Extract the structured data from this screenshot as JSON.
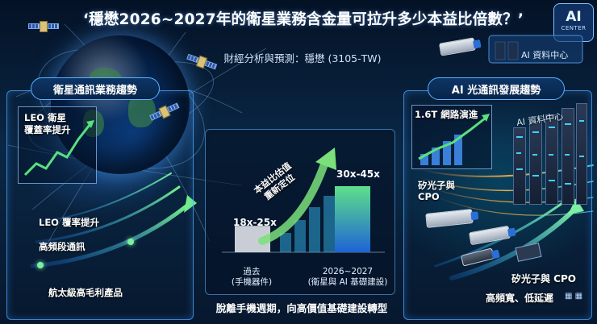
{
  "title": "‘穩懋2026~2027年的衛星業務含金量可拉升多少本益比倍數？’",
  "subtitle": "財經分析與預測：穩懋 (3105-TW)",
  "left_panel": {
    "heading": "衛星通訊業務趨勢",
    "mini_label": "LEO 衛星\n覆蓋率提升",
    "mini_label_1": "LEO 衛星",
    "mini_label_2": "覆蓋率提升",
    "points": [
      "LEO 覆率提升",
      "高頻段通訊",
      "航太級高毛利產品"
    ]
  },
  "right_panel": {
    "heading": "AI 光通訊發展趨勢",
    "ai_badge": "AI",
    "ai_badge_sub": "CENTER",
    "top_banner": "AI 資料中心",
    "server_banner": "AI 資料中心",
    "mini_label": "1.6T 網路演進",
    "photonics_label_1": "矽光子與",
    "photonics_label_2": "CPO",
    "bottom_label_1": "矽光子與 CPO",
    "bottom_label_2": "高頻寬、低延遲"
  },
  "chart_data": {
    "type": "bar",
    "categories": [
      "過去\n(手機器件)",
      "2026~2027\n(衛星與 AI 基礎建設)"
    ],
    "category_lines": [
      [
        "過去",
        "(手機器件)"
      ],
      [
        "2026~2027",
        "(衛星與 AI 基礎建設)"
      ]
    ],
    "value_labels": [
      "18x-25x",
      "30x-45x"
    ],
    "series": [
      {
        "values": [
          [
            18,
            25
          ],
          [
            30,
            45
          ]
        ]
      }
    ],
    "annotation": "本益比估值\n重新定位",
    "annotation_lines": [
      "本益比估值",
      "重新定位"
    ],
    "caption": "脫離手機週期，向高價值基礎建設轉型",
    "colors": {
      "past": "#c9ced6",
      "future_top": "#5ee08a",
      "future_bottom": "#1f63d6",
      "arrow": "#7be07a"
    }
  }
}
